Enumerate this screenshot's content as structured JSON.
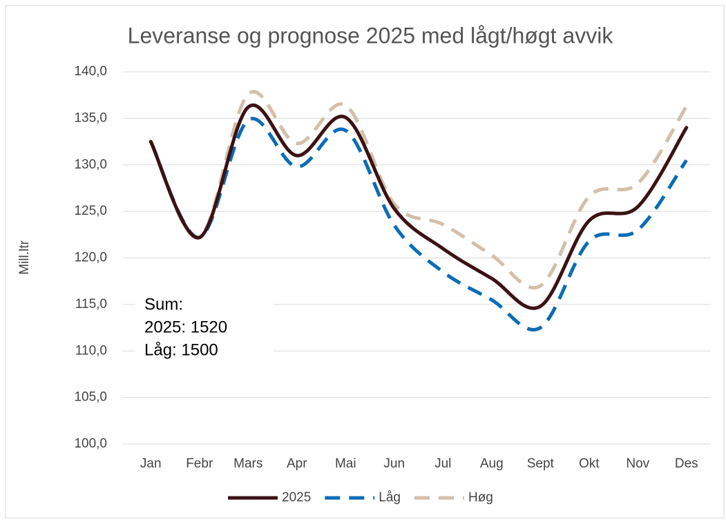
{
  "chart_data": {
    "type": "line",
    "title": "Leveranse og prognose 2025 med lågt/høgt avvik",
    "y_label": "Mill.ltr",
    "categories": [
      "Jan",
      "Febr",
      "Mars",
      "Apr",
      "Mai",
      "Jun",
      "Jul",
      "Aug",
      "Sept",
      "Okt",
      "Nov",
      "Des"
    ],
    "series": [
      {
        "name": "2025",
        "color": "#3b1214",
        "dash": false,
        "values": [
          132.5,
          122.2,
          136.2,
          131.0,
          135.1,
          125.3,
          121.0,
          117.8,
          114.8,
          124.0,
          125.5,
          134.0
        ]
      },
      {
        "name": "Låg",
        "color": "#0a6cb6",
        "dash": true,
        "values": [
          132.5,
          122.2,
          134.8,
          129.8,
          133.7,
          123.5,
          118.5,
          115.5,
          112.5,
          121.8,
          123.0,
          130.5
        ]
      },
      {
        "name": "Høg",
        "color": "#d3bfaa",
        "dash": true,
        "values": [
          132.5,
          122.2,
          137.6,
          132.3,
          136.4,
          125.8,
          123.6,
          120.3,
          117.0,
          126.6,
          128.0,
          136.3
        ]
      }
    ],
    "ylim": [
      100,
      140
    ],
    "yticks": [
      {
        "value": 100,
        "label": "100,0"
      },
      {
        "value": 105,
        "label": "105,0"
      },
      {
        "value": 110,
        "label": "110,0"
      },
      {
        "value": 115,
        "label": "115,0"
      },
      {
        "value": 120,
        "label": "120,0"
      },
      {
        "value": 125,
        "label": "125,0"
      },
      {
        "value": 130,
        "label": "130,0"
      },
      {
        "value": 135,
        "label": "135,0"
      },
      {
        "value": 140,
        "label": "140,0"
      }
    ],
    "grid": true,
    "legend": "bottom",
    "annotation": [
      "Sum:",
      "2025: 1520",
      "Låg: 1500"
    ]
  }
}
